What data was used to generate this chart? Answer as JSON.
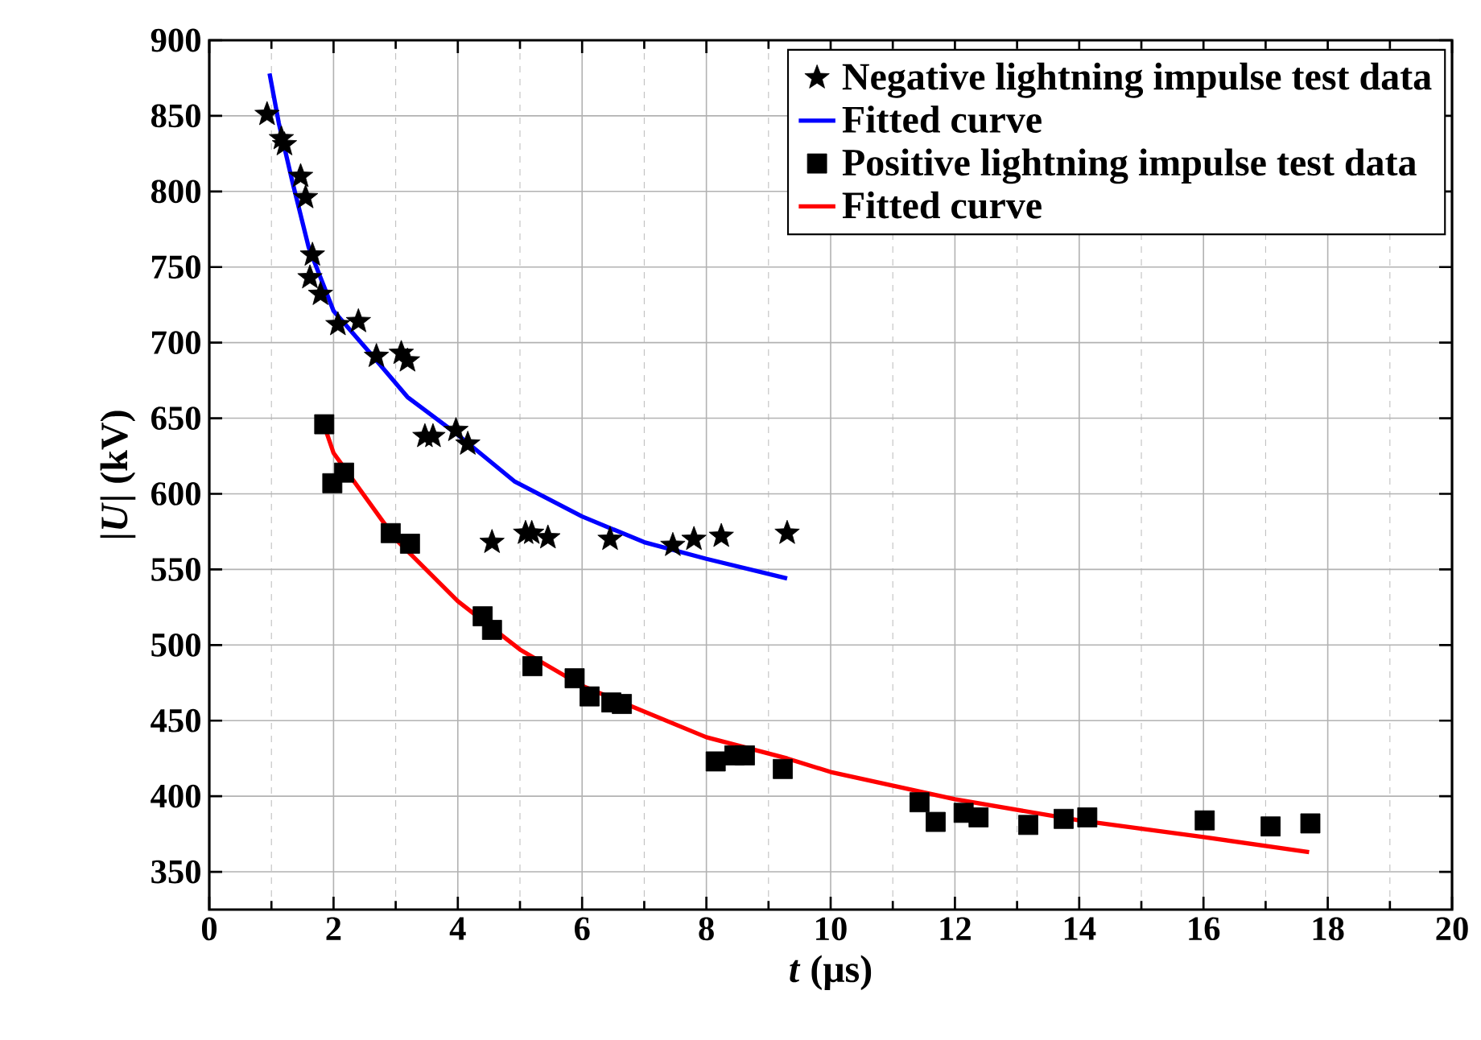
{
  "chart_data": {
    "type": "scatter",
    "xlabel": "*t* (μs)",
    "ylabel": "|*U*| (kV)",
    "xlim": [
      0,
      20
    ],
    "xticks": [
      0,
      2,
      4,
      6,
      8,
      10,
      12,
      14,
      16,
      18,
      20
    ],
    "ylim": [
      325,
      900
    ],
    "yticks": [
      350,
      400,
      450,
      500,
      550,
      600,
      650,
      700,
      750,
      800,
      850,
      900
    ],
    "grid": true,
    "legend": "top right",
    "series": [
      {
        "name": "Negative lightning impulse test data",
        "marker": "star",
        "color": "#000000",
        "x": [
          0.93,
          1.16,
          1.21,
          1.47,
          1.55,
          1.66,
          1.62,
          1.79,
          2.07,
          2.4,
          2.69,
          3.09,
          3.19,
          3.47,
          3.6,
          3.97,
          4.16,
          4.55,
          5.09,
          5.19,
          5.45,
          6.45,
          7.46,
          7.8,
          8.24,
          9.3
        ],
        "values": [
          851,
          835,
          831,
          810,
          796,
          758,
          743,
          732,
          712,
          714,
          691,
          693,
          688,
          638,
          638,
          642,
          633,
          568,
          574,
          574,
          571,
          570,
          566,
          570,
          572,
          574
        ]
      },
      {
        "name": "Fitted curve",
        "type": "line",
        "marker": "none",
        "color": "#0000ff",
        "x": [
          0.97,
          1.12,
          1.34,
          1.6,
          2,
          2.59,
          3.19,
          4,
          4.92,
          6,
          7,
          8,
          9.3
        ],
        "values": [
          878,
          845,
          806,
          763,
          721,
          693,
          664,
          639,
          608,
          585,
          568,
          557,
          544
        ]
      },
      {
        "name": "Positive lightning impulse test data",
        "marker": "square",
        "color": "#000000",
        "x": [
          1.85,
          1.98,
          2.17,
          2.92,
          3.23,
          4.4,
          4.55,
          5.2,
          5.88,
          6.12,
          6.47,
          6.64,
          8.15,
          8.45,
          8.62,
          9.23,
          11.43,
          11.69,
          12.14,
          12.38,
          13.18,
          13.75,
          14.13,
          16.02,
          17.08,
          17.72
        ],
        "values": [
          646,
          607,
          614,
          574,
          567,
          519,
          510,
          486,
          478,
          466,
          462,
          461,
          423,
          427,
          427,
          418,
          396,
          383,
          389,
          386,
          381,
          385,
          386,
          384,
          380,
          382
        ]
      },
      {
        "name": "Fitted curve",
        "type": "line",
        "marker": "none",
        "color": "#ff0000",
        "x": [
          1.85,
          2,
          3,
          4,
          5,
          6,
          8,
          9.3,
          10,
          12,
          14,
          16,
          17.7
        ],
        "values": [
          645,
          627,
          570,
          529,
          497,
          473,
          439,
          425,
          416,
          398,
          384,
          373,
          363
        ]
      }
    ]
  }
}
